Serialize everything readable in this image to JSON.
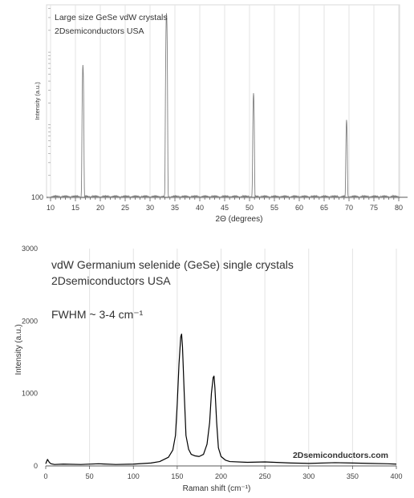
{
  "chart_data": [
    {
      "type": "line",
      "annotations": [
        "Large size GeSe vdW crystals",
        "2Dsemiconductors USA"
      ],
      "xlabel": "2Θ (degrees)",
      "ylabel": "Intensity (a.u.)",
      "xlim": [
        10,
        80
      ],
      "xticks": [
        10,
        15,
        20,
        25,
        30,
        35,
        40,
        45,
        50,
        55,
        60,
        65,
        70,
        75,
        80
      ],
      "yscale": "log",
      "ytick_labels": [
        "100"
      ],
      "ylim": [
        100,
        45000
      ],
      "grid": "vertical",
      "series_color": "#7f7f7f",
      "peaks": [
        {
          "x": 16.5,
          "y": 6500
        },
        {
          "x": 33.3,
          "y": 34000
        },
        {
          "x": 50.8,
          "y": 2600
        },
        {
          "x": 69.5,
          "y": 1050
        }
      ],
      "baseline": 100
    },
    {
      "type": "line",
      "annotations": [
        "vdW Germanium selenide (GeSe) single crystals",
        "2Dsemiconductors USA",
        "FWHM ~ 3-4 cm⁻¹"
      ],
      "watermark": "2Dsemiconductors.com",
      "xlabel": "Raman shift (cm⁻¹)",
      "ylabel": "Intensity (a.u.)",
      "xlim": [
        0,
        400
      ],
      "ylim": [
        0,
        3000
      ],
      "xticks": [
        0,
        50,
        100,
        150,
        200,
        250,
        300,
        350,
        400
      ],
      "yticks": [
        0,
        1000,
        2000,
        3000
      ],
      "grid": "vertical",
      "series_color": "#000000",
      "x": [
        0,
        2,
        4,
        6,
        10,
        20,
        40,
        60,
        80,
        100,
        120,
        130,
        140,
        145,
        148,
        150,
        152,
        154,
        155,
        156,
        158,
        160,
        163,
        166,
        170,
        175,
        180,
        184,
        187,
        189,
        191,
        192,
        193,
        195,
        197,
        200,
        205,
        210,
        230,
        250,
        280,
        300,
        330,
        350,
        370,
        390,
        400
      ],
      "y": [
        30,
        90,
        50,
        30,
        20,
        25,
        20,
        30,
        20,
        25,
        40,
        60,
        120,
        220,
        420,
        850,
        1400,
        1780,
        1820,
        1650,
        1000,
        420,
        230,
        160,
        140,
        130,
        160,
        300,
        600,
        1000,
        1220,
        1240,
        1080,
        600,
        250,
        130,
        80,
        60,
        50,
        55,
        40,
        35,
        45,
        40,
        35,
        30,
        25
      ]
    }
  ]
}
